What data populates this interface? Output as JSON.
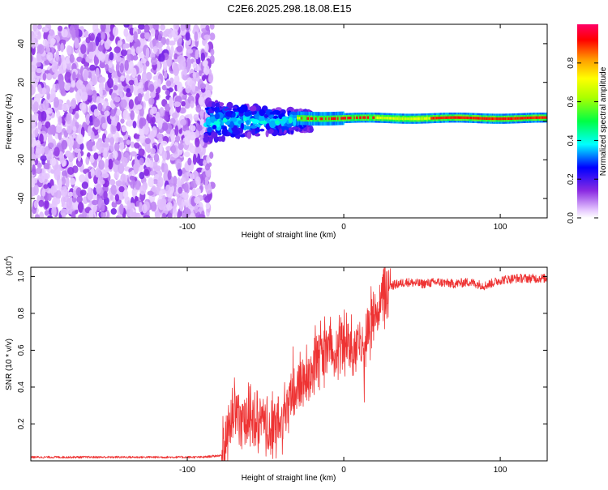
{
  "title": "C2E6.2025.298.18.08.E15",
  "chart_data": [
    {
      "type": "heatmap",
      "xlabel": "Height of straight line (km)",
      "ylabel": "Frequency (Hz)",
      "xlim": [
        -200,
        130
      ],
      "ylim": [
        -50,
        50
      ],
      "x_ticks": [
        -100,
        0,
        100
      ],
      "x_tick_labels": [
        "-100",
        "0",
        "100"
      ],
      "y_ticks": [
        -40,
        -20,
        0,
        20,
        40
      ],
      "y_tick_labels": [
        "-40",
        "-20",
        "0",
        "20",
        "40"
      ],
      "colorbar": {
        "label": "Normalized spectral amplitude",
        "range": [
          0.0,
          1.0
        ],
        "ticks": [
          0.0,
          0.2,
          0.4,
          0.6,
          0.8
        ],
        "tick_labels": [
          "0.0",
          "0.2",
          "0.4",
          "0.6",
          "0.8"
        ]
      },
      "regions": [
        {
          "name": "noise",
          "x_range": [
            -200,
            -84
          ],
          "freq_range": [
            -50,
            50
          ],
          "amplitude": 0.05
        },
        {
          "name": "transition",
          "x_range": [
            -88,
            -20
          ],
          "freq_range": [
            -10,
            10
          ],
          "amplitude": 0.25
        },
        {
          "name": "carrier",
          "x_range": [
            -30,
            130
          ],
          "freq_range": [
            0,
            3
          ],
          "amplitude": 0.95
        }
      ]
    },
    {
      "type": "line",
      "xlabel": "Height of straight line (km)",
      "ylabel": "SNR (10 * v/v)",
      "y_multiplier": "(x10^4)",
      "xlim": [
        -200,
        130
      ],
      "ylim": [
        0,
        1.05
      ],
      "x_ticks": [
        -100,
        0,
        100
      ],
      "x_tick_labels": [
        "-100",
        "0",
        "100"
      ],
      "y_ticks": [
        0.2,
        0.4,
        0.6,
        0.8,
        1.0
      ],
      "y_tick_labels": [
        "0.2",
        "0.4",
        "0.6",
        "0.8",
        "1.0"
      ],
      "series": [
        {
          "name": "SNR",
          "color": "#ee3333",
          "x": [
            -200,
            -160,
            -120,
            -90,
            -78,
            -74,
            -70,
            -65,
            -60,
            -55,
            -50,
            -45,
            -40,
            -35,
            -30,
            -25,
            -20,
            -15,
            -10,
            -5,
            0,
            5,
            10,
            13,
            15,
            20,
            25,
            30,
            40,
            50,
            60,
            70,
            80,
            90,
            100,
            110,
            120,
            130
          ],
          "values": [
            0.02,
            0.02,
            0.02,
            0.02,
            0.03,
            0.15,
            0.28,
            0.25,
            0.22,
            0.2,
            0.18,
            0.17,
            0.2,
            0.3,
            0.4,
            0.45,
            0.5,
            0.58,
            0.6,
            0.62,
            0.64,
            0.62,
            0.66,
            0.5,
            0.72,
            0.8,
            0.88,
            0.95,
            0.97,
            0.96,
            0.97,
            0.96,
            0.97,
            0.95,
            0.98,
            0.99,
            0.99,
            0.99
          ]
        }
      ]
    }
  ]
}
